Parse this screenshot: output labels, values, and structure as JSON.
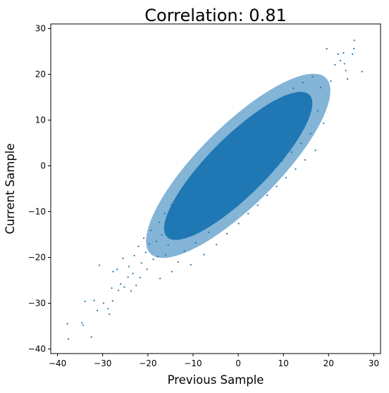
{
  "chart_data": {
    "type": "scatter",
    "title": "Correlation: 0.81",
    "xlabel": "Previous Sample",
    "ylabel": "Current Sample",
    "xlim": [
      -41.5,
      31.5
    ],
    "ylim": [
      -41.0,
      31.0
    ],
    "xticks": [
      -40,
      -30,
      -20,
      -10,
      0,
      10,
      20,
      30
    ],
    "xtick_labels": [
      "−40",
      "−30",
      "−20",
      "−10",
      "0",
      "10",
      "20",
      "30"
    ],
    "yticks": [
      -40,
      -30,
      -20,
      -10,
      0,
      10,
      20,
      30
    ],
    "ytick_labels": [
      "−40",
      "−30",
      "−20",
      "−10",
      "0",
      "10",
      "20",
      "30"
    ],
    "grid": false,
    "legend": "none",
    "correlation": 0.81,
    "series": [
      {
        "color": "#1f77b4",
        "points": [
          [
            -37.8,
            -34.5
          ],
          [
            -37.6,
            -37.8
          ],
          [
            -34.6,
            -34.3
          ],
          [
            -34.3,
            -34.8
          ],
          [
            -33.9,
            -29.6
          ],
          [
            -32.5,
            -37.4
          ],
          [
            -31.9,
            -29.4
          ],
          [
            -31.2,
            -31.6
          ],
          [
            -30.7,
            -21.7
          ],
          [
            -29.8,
            -30.0
          ],
          [
            -28.5,
            -32.4
          ],
          [
            -28.8,
            -31.2
          ],
          [
            -28.0,
            -26.7
          ],
          [
            -27.8,
            -29.5
          ],
          [
            -27.7,
            -23.1
          ],
          [
            -26.8,
            -22.6
          ],
          [
            -26.5,
            -27.2
          ],
          [
            -26.0,
            -25.8
          ],
          [
            -25.5,
            -20.2
          ],
          [
            -25.2,
            -26.5
          ],
          [
            -24.4,
            -24.3
          ],
          [
            -24.2,
            -22.0
          ],
          [
            -23.7,
            -27.3
          ],
          [
            -23.3,
            -23.5
          ],
          [
            -23.0,
            -19.6
          ],
          [
            -22.6,
            -26.1
          ],
          [
            -22.1,
            -17.6
          ],
          [
            -21.7,
            -24.4
          ],
          [
            -21.4,
            -21.2
          ],
          [
            -20.9,
            -15.8
          ],
          [
            -20.5,
            -18.9
          ],
          [
            -20.2,
            -22.6
          ],
          [
            -19.7,
            -17.1
          ],
          [
            -19.3,
            -14.1
          ],
          [
            -18.8,
            -20.4
          ],
          [
            -18.1,
            -16.5
          ],
          [
            -17.8,
            -19.8
          ],
          [
            -17.5,
            -12.3
          ],
          [
            -17.3,
            -24.6
          ],
          [
            -16.9,
            -15.1
          ],
          [
            -16.3,
            -10.4
          ],
          [
            -16.1,
            -19.4
          ],
          [
            -15.5,
            -17.3
          ],
          [
            -14.8,
            -8.5
          ],
          [
            -14.7,
            -23.1
          ],
          [
            -14.1,
            -11.9
          ],
          [
            -13.7,
            -15.6
          ],
          [
            -13.3,
            -21.0
          ],
          [
            -12.7,
            -7.4
          ],
          [
            -12.4,
            -13.7
          ],
          [
            -11.9,
            -18.6
          ],
          [
            -11.6,
            -10.5
          ],
          [
            -11.2,
            -5.1
          ],
          [
            -10.7,
            -14.8
          ],
          [
            -10.5,
            -21.6
          ],
          [
            -10.1,
            -8.9
          ],
          [
            -9.6,
            -3.0
          ],
          [
            -9.4,
            -16.8
          ],
          [
            -8.9,
            -12.2
          ],
          [
            -8.5,
            -7.1
          ],
          [
            -8.0,
            -1.3
          ],
          [
            -7.6,
            -19.4
          ],
          [
            -7.4,
            -10.6
          ],
          [
            -7.0,
            -5.6
          ],
          [
            -6.5,
            -14.5
          ],
          [
            -6.1,
            0.9
          ],
          [
            -5.7,
            -8.8
          ],
          [
            -5.3,
            -3.7
          ],
          [
            -4.8,
            -17.2
          ],
          [
            -4.6,
            -12.0
          ],
          [
            -4.1,
            2.7
          ],
          [
            -3.7,
            -6.9
          ],
          [
            -3.3,
            -1.7
          ],
          [
            -2.9,
            -10.1
          ],
          [
            -2.5,
            -14.8
          ],
          [
            -2.0,
            4.6
          ],
          [
            -1.6,
            -5.2
          ],
          [
            -1.2,
            0.1
          ],
          [
            -0.8,
            -8.3
          ],
          [
            -0.4,
            6.5
          ],
          [
            0.1,
            -12.6
          ],
          [
            0.5,
            -3.3
          ],
          [
            0.9,
            2.2
          ],
          [
            1.3,
            -6.7
          ],
          [
            1.7,
            8.1
          ],
          [
            2.2,
            -10.4
          ],
          [
            2.6,
            -1.4
          ],
          [
            3.0,
            4.0
          ],
          [
            3.4,
            -4.9
          ],
          [
            3.9,
            9.9
          ],
          [
            4.3,
            -8.6
          ],
          [
            4.7,
            0.5
          ],
          [
            5.1,
            6.1
          ],
          [
            5.5,
            -2.9
          ],
          [
            5.9,
            12.3
          ],
          [
            6.4,
            -6.4
          ],
          [
            6.8,
            2.4
          ],
          [
            7.2,
            8.0
          ],
          [
            7.6,
            -0.9
          ],
          [
            8.0,
            13.7
          ],
          [
            8.5,
            -4.5
          ],
          [
            8.9,
            4.3
          ],
          [
            9.3,
            9.9
          ],
          [
            9.7,
            1.0
          ],
          [
            10.1,
            15.2
          ],
          [
            10.6,
            -2.6
          ],
          [
            11.0,
            6.2
          ],
          [
            11.4,
            11.7
          ],
          [
            11.8,
            3.0
          ],
          [
            12.2,
            16.9
          ],
          [
            12.7,
            -0.7
          ],
          [
            13.1,
            8.1
          ],
          [
            13.5,
            13.5
          ],
          [
            13.9,
            4.9
          ],
          [
            14.3,
            18.2
          ],
          [
            14.8,
            1.3
          ],
          [
            15.2,
            10.0
          ],
          [
            15.6,
            15.2
          ],
          [
            16.0,
            7.0
          ],
          [
            16.4,
            19.5
          ],
          [
            17.1,
            3.4
          ],
          [
            17.6,
            12.0
          ],
          [
            18.2,
            17.1
          ],
          [
            18.9,
            9.3
          ],
          [
            19.6,
            25.6
          ],
          [
            20.5,
            18.5
          ],
          [
            21.4,
            22.1
          ],
          [
            22.1,
            24.4
          ],
          [
            22.6,
            23.0
          ],
          [
            23.3,
            24.7
          ],
          [
            23.5,
            22.3
          ],
          [
            23.8,
            20.8
          ],
          [
            24.2,
            19.0
          ],
          [
            25.3,
            24.4
          ],
          [
            25.6,
            25.6
          ],
          [
            25.7,
            27.4
          ],
          [
            27.4,
            20.6
          ]
        ]
      }
    ]
  }
}
